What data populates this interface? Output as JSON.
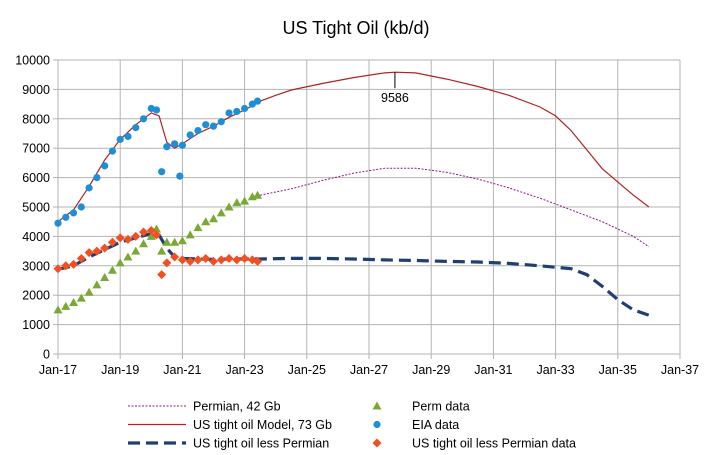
{
  "chart_data": {
    "type": "line",
    "title": "US Tight Oil (kb/d)",
    "xlabel": "",
    "ylabel": "",
    "x_axis": {
      "min": "2017-01",
      "max": "2037-01",
      "tick_labels": [
        "Jan-17",
        "Jan-19",
        "Jan-21",
        "Jan-23",
        "Jan-25",
        "Jan-27",
        "Jan-29",
        "Jan-31",
        "Jan-33",
        "Jan-35",
        "Jan-37"
      ]
    },
    "y_axis": {
      "min": 0,
      "max": 10000,
      "tick_labels": [
        "0",
        "1000",
        "2000",
        "3000",
        "4000",
        "5000",
        "6000",
        "7000",
        "8000",
        "9000",
        "10000"
      ]
    },
    "grid": "horizontal and vertical gridlines",
    "legend_position": "bottom",
    "annotations": [
      {
        "text": "9586",
        "x": "2027-11",
        "y": 9586
      }
    ],
    "series": [
      {
        "name": "Permian, 42 Gb",
        "kind": "line",
        "style": "dotted",
        "color": "#8b1a8b",
        "points": [
          [
            "2023-07",
            5400
          ],
          [
            "2024-07",
            5620
          ],
          [
            "2025-07",
            5900
          ],
          [
            "2026-07",
            6150
          ],
          [
            "2027-07",
            6320
          ],
          [
            "2028-07",
            6320
          ],
          [
            "2029-07",
            6180
          ],
          [
            "2030-07",
            5950
          ],
          [
            "2031-07",
            5650
          ],
          [
            "2032-07",
            5300
          ],
          [
            "2033-07",
            4900
          ],
          [
            "2034-07",
            4500
          ],
          [
            "2035-07",
            4000
          ],
          [
            "2036-01",
            3650
          ]
        ]
      },
      {
        "name": "US tight oil Model, 73 Gb",
        "kind": "line",
        "style": "solid",
        "color": "#b22222",
        "points": [
          [
            "2017-01",
            4500
          ],
          [
            "2017-07",
            4900
          ],
          [
            "2018-01",
            5700
          ],
          [
            "2018-07",
            6600
          ],
          [
            "2019-01",
            7300
          ],
          [
            "2019-07",
            7800
          ],
          [
            "2020-01",
            8200
          ],
          [
            "2020-04",
            8100
          ],
          [
            "2020-07",
            7200
          ],
          [
            "2020-10",
            7000
          ],
          [
            "2021-01",
            7150
          ],
          [
            "2021-07",
            7500
          ],
          [
            "2022-01",
            7750
          ],
          [
            "2022-07",
            8050
          ],
          [
            "2023-01",
            8300
          ],
          [
            "2023-07",
            8600
          ],
          [
            "2024-01",
            8800
          ],
          [
            "2024-07",
            8980
          ],
          [
            "2025-07",
            9200
          ],
          [
            "2026-07",
            9400
          ],
          [
            "2027-07",
            9560
          ],
          [
            "2027-11",
            9586
          ],
          [
            "2028-07",
            9560
          ],
          [
            "2029-07",
            9350
          ],
          [
            "2030-07",
            9100
          ],
          [
            "2031-07",
            8800
          ],
          [
            "2032-07",
            8400
          ],
          [
            "2033-01",
            8100
          ],
          [
            "2033-07",
            7600
          ],
          [
            "2034-07",
            6300
          ],
          [
            "2035-07",
            5400
          ],
          [
            "2036-01",
            5000
          ]
        ]
      },
      {
        "name": "US tight oil less Permian",
        "kind": "line",
        "style": "dashed",
        "color": "#1f3f73",
        "points": [
          [
            "2017-01",
            2880
          ],
          [
            "2017-07",
            3000
          ],
          [
            "2018-01",
            3300
          ],
          [
            "2018-07",
            3550
          ],
          [
            "2019-01",
            3800
          ],
          [
            "2019-07",
            3950
          ],
          [
            "2020-01",
            4100
          ],
          [
            "2020-04",
            4050
          ],
          [
            "2020-07",
            3600
          ],
          [
            "2020-10",
            3300
          ],
          [
            "2021-01",
            3250
          ],
          [
            "2021-07",
            3230
          ],
          [
            "2022-01",
            3220
          ],
          [
            "2022-07",
            3230
          ],
          [
            "2023-01",
            3230
          ],
          [
            "2023-07",
            3230
          ],
          [
            "2024-07",
            3250
          ],
          [
            "2025-07",
            3250
          ],
          [
            "2026-07",
            3230
          ],
          [
            "2027-07",
            3200
          ],
          [
            "2028-07",
            3180
          ],
          [
            "2029-07",
            3150
          ],
          [
            "2030-07",
            3130
          ],
          [
            "2031-07",
            3080
          ],
          [
            "2032-07",
            3000
          ],
          [
            "2033-07",
            2900
          ],
          [
            "2034-01",
            2700
          ],
          [
            "2034-07",
            2300
          ],
          [
            "2035-01",
            1850
          ],
          [
            "2035-07",
            1500
          ],
          [
            "2036-01",
            1320
          ]
        ]
      },
      {
        "name": "Perm data",
        "kind": "scatter",
        "marker": "triangle",
        "color": "#77a933",
        "points": [
          [
            "2017-01",
            1500
          ],
          [
            "2017-04",
            1620
          ],
          [
            "2017-07",
            1750
          ],
          [
            "2017-10",
            1900
          ],
          [
            "2018-01",
            2100
          ],
          [
            "2018-04",
            2350
          ],
          [
            "2018-07",
            2600
          ],
          [
            "2018-10",
            2850
          ],
          [
            "2019-01",
            3100
          ],
          [
            "2019-04",
            3300
          ],
          [
            "2019-07",
            3500
          ],
          [
            "2019-10",
            3750
          ],
          [
            "2020-01",
            4000
          ],
          [
            "2020-03",
            4250
          ],
          [
            "2020-05",
            3500
          ],
          [
            "2020-07",
            3800
          ],
          [
            "2020-10",
            3800
          ],
          [
            "2021-01",
            3850
          ],
          [
            "2021-04",
            4050
          ],
          [
            "2021-07",
            4300
          ],
          [
            "2021-10",
            4500
          ],
          [
            "2022-01",
            4600
          ],
          [
            "2022-04",
            4800
          ],
          [
            "2022-07",
            5000
          ],
          [
            "2022-10",
            5150
          ],
          [
            "2023-01",
            5200
          ],
          [
            "2023-04",
            5350
          ],
          [
            "2023-06",
            5400
          ]
        ]
      },
      {
        "name": "EIA data",
        "kind": "scatter",
        "marker": "circle",
        "color": "#1e8fd6",
        "points": [
          [
            "2017-01",
            4450
          ],
          [
            "2017-04",
            4650
          ],
          [
            "2017-07",
            4800
          ],
          [
            "2017-10",
            5000
          ],
          [
            "2018-01",
            5650
          ],
          [
            "2018-04",
            6000
          ],
          [
            "2018-07",
            6400
          ],
          [
            "2018-10",
            6900
          ],
          [
            "2019-01",
            7300
          ],
          [
            "2019-04",
            7400
          ],
          [
            "2019-07",
            7700
          ],
          [
            "2019-10",
            8000
          ],
          [
            "2020-01",
            8350
          ],
          [
            "2020-03",
            8300
          ],
          [
            "2020-05",
            6200
          ],
          [
            "2020-07",
            7050
          ],
          [
            "2020-10",
            7150
          ],
          [
            "2020-12",
            6050
          ],
          [
            "2021-01",
            7100
          ],
          [
            "2021-04",
            7450
          ],
          [
            "2021-07",
            7600
          ],
          [
            "2021-10",
            7800
          ],
          [
            "2022-01",
            7750
          ],
          [
            "2022-04",
            7900
          ],
          [
            "2022-07",
            8200
          ],
          [
            "2022-10",
            8250
          ],
          [
            "2023-01",
            8350
          ],
          [
            "2023-04",
            8500
          ],
          [
            "2023-06",
            8600
          ]
        ]
      },
      {
        "name": "US tight oil less Permian data",
        "kind": "scatter",
        "marker": "diamond",
        "color": "#f25022",
        "points": [
          [
            "2017-01",
            2900
          ],
          [
            "2017-04",
            3000
          ],
          [
            "2017-07",
            3050
          ],
          [
            "2017-10",
            3250
          ],
          [
            "2018-01",
            3450
          ],
          [
            "2018-04",
            3500
          ],
          [
            "2018-07",
            3600
          ],
          [
            "2018-10",
            3800
          ],
          [
            "2019-01",
            3950
          ],
          [
            "2019-04",
            3900
          ],
          [
            "2019-07",
            4000
          ],
          [
            "2019-10",
            4150
          ],
          [
            "2020-01",
            4200
          ],
          [
            "2020-03",
            4050
          ],
          [
            "2020-05",
            2700
          ],
          [
            "2020-07",
            3100
          ],
          [
            "2020-10",
            3300
          ],
          [
            "2021-01",
            3200
          ],
          [
            "2021-04",
            3150
          ],
          [
            "2021-07",
            3200
          ],
          [
            "2021-10",
            3250
          ],
          [
            "2022-01",
            3150
          ],
          [
            "2022-04",
            3200
          ],
          [
            "2022-07",
            3250
          ],
          [
            "2022-10",
            3200
          ],
          [
            "2023-01",
            3250
          ],
          [
            "2023-04",
            3200
          ],
          [
            "2023-06",
            3150
          ]
        ]
      }
    ]
  }
}
